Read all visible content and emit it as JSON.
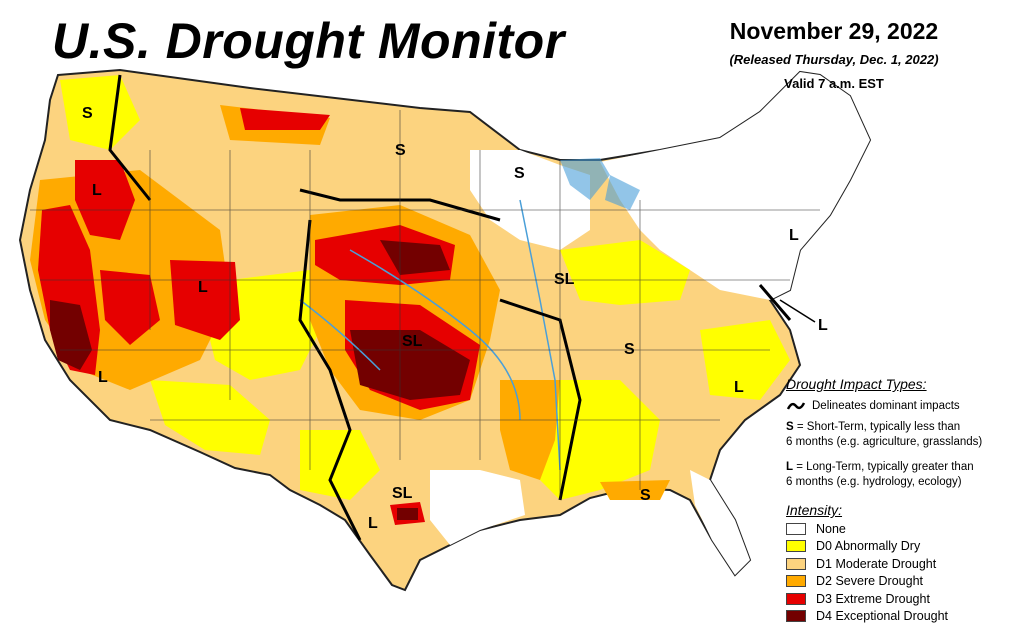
{
  "header": {
    "title": "U.S. Drought Monitor",
    "date": "November 29, 2022",
    "released": "(Released Thursday, Dec. 1, 2022)",
    "valid": "Valid 7 a.m. EST"
  },
  "impact_types": {
    "heading": "Drought Impact Types:",
    "delineates": "Delineates dominant impacts",
    "short_term_code": "S",
    "short_term_line1": " = Short-Term, typically less than",
    "short_term_line2": "6 months (e.g. agriculture, grasslands)",
    "long_term_code": "L",
    "long_term_line1": " = Long-Term, typically greater than",
    "long_term_line2": "6 months (e.g. hydrology, ecology)"
  },
  "intensity": {
    "heading": "Intensity:",
    "levels": [
      {
        "label": "None",
        "color": "#ffffff"
      },
      {
        "label": "D0 Abnormally Dry",
        "color": "#ffff00"
      },
      {
        "label": "D1 Moderate Drought",
        "color": "#fcd37f"
      },
      {
        "label": "D2 Severe Drought",
        "color": "#ffaa00"
      },
      {
        "label": "D3 Extreme Drought",
        "color": "#e60000"
      },
      {
        "label": "D4 Exceptional Drought",
        "color": "#730000"
      }
    ]
  },
  "map_labels": {
    "wa": "S",
    "or": "L",
    "ca": "L",
    "ut": "L",
    "nd": "S",
    "mi": "S",
    "ia_il": "SL",
    "ks": "SL",
    "tn": "S",
    "nc": "L",
    "tx": "SL",
    "tx_south": "L",
    "fl": "S",
    "ne": "L",
    "md": "L"
  },
  "colors": {
    "water": "#4a9fd8"
  }
}
